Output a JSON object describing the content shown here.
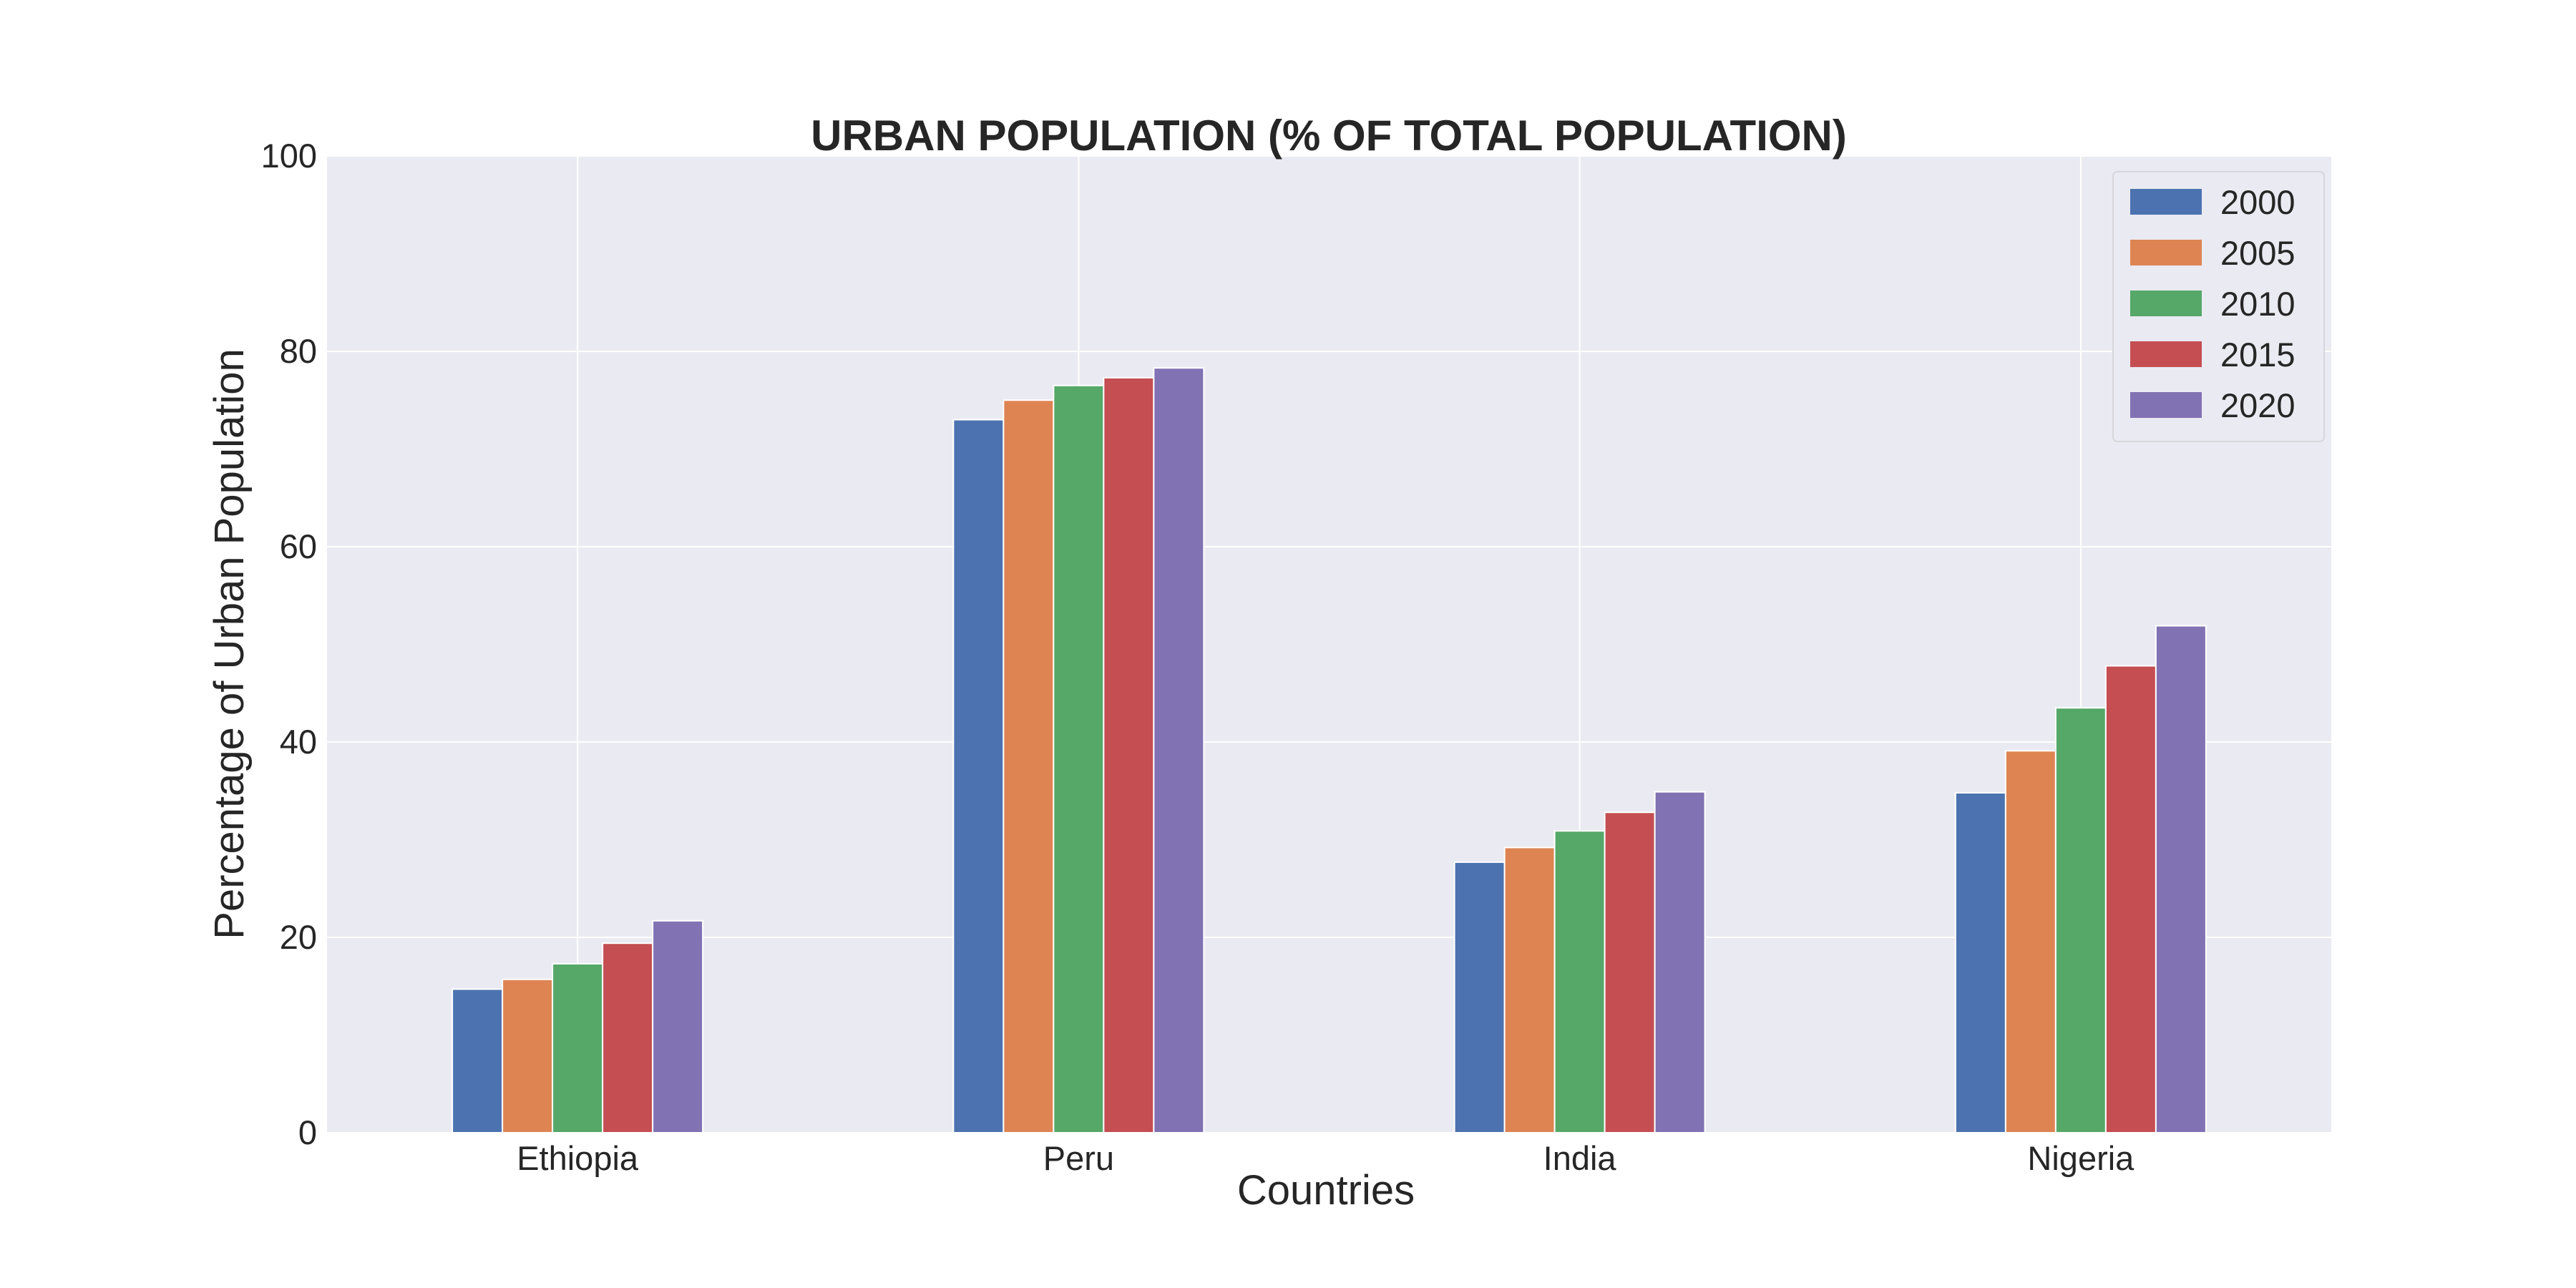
{
  "chart_data": {
    "type": "bar",
    "title": "URBAN POPULATION (% OF TOTAL POPULATION)",
    "xlabel": "Countries",
    "ylabel": "Percentage of Urban Population",
    "categories": [
      "Ethiopia",
      "Peru",
      "India",
      "Nigeria"
    ],
    "series": [
      {
        "name": "2000",
        "color": "#4c72b0",
        "values": [
          14.7,
          73.0,
          27.7,
          34.8
        ]
      },
      {
        "name": "2005",
        "color": "#dd8452",
        "values": [
          15.7,
          75.0,
          29.2,
          39.1
        ]
      },
      {
        "name": "2010",
        "color": "#55a868",
        "values": [
          17.3,
          76.5,
          30.9,
          43.5
        ]
      },
      {
        "name": "2015",
        "color": "#c44e52",
        "values": [
          19.4,
          77.3,
          32.8,
          47.8
        ]
      },
      {
        "name": "2020",
        "color": "#8172b3",
        "values": [
          21.7,
          78.3,
          34.9,
          51.9
        ]
      }
    ],
    "ylim": [
      0,
      100
    ],
    "yticks": [
      0,
      20,
      40,
      60,
      80,
      100
    ],
    "grid": true,
    "legend_position": "top-right",
    "plot_background": "#eaeaf2"
  }
}
